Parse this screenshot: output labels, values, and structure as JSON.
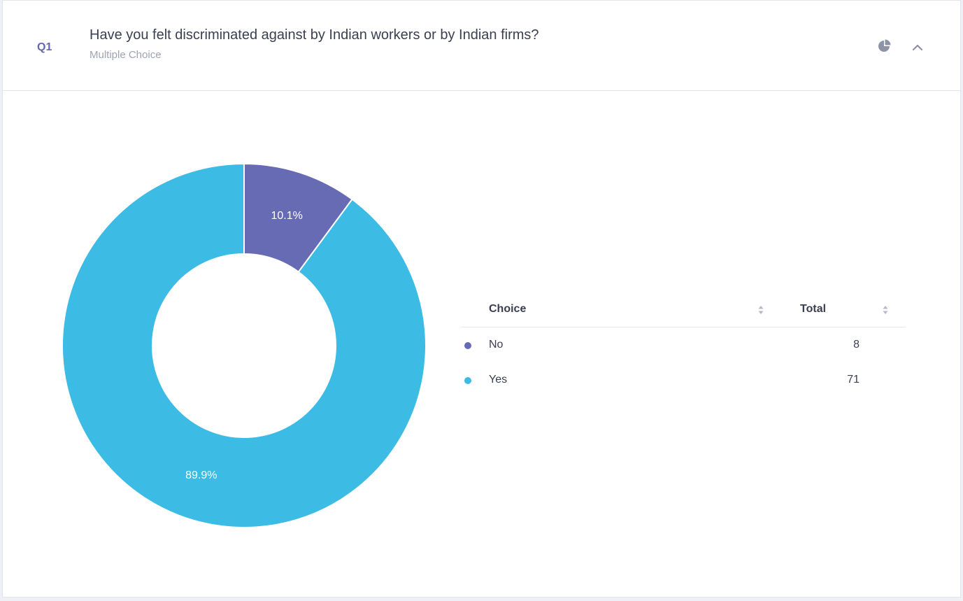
{
  "question": {
    "number": "Q1",
    "title": "Have you felt discriminated against by Indian workers or by Indian firms?",
    "type": "Multiple Choice"
  },
  "icons": {
    "chart_toggle": "pie-chart-icon",
    "collapse": "chevron-up-icon",
    "sort": "sort-arrows-icon"
  },
  "colors": {
    "No": "#676bb4",
    "Yes": "#3cbbe5"
  },
  "legend": {
    "choice_header": "Choice",
    "total_header": "Total",
    "rows": [
      {
        "label": "No",
        "total": "8"
      },
      {
        "label": "Yes",
        "total": "71"
      }
    ]
  },
  "chart_data": {
    "type": "pie",
    "donut": true,
    "categories": [
      "No",
      "Yes"
    ],
    "values": [
      8,
      71
    ],
    "labels": [
      "10.1%",
      "89.9%"
    ],
    "title": "",
    "legend": "right"
  }
}
